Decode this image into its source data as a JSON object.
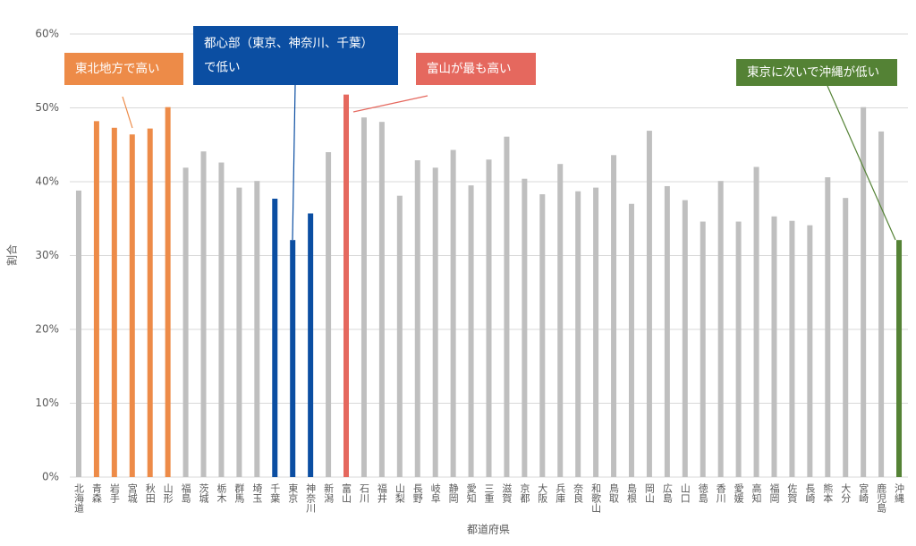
{
  "chart_data": {
    "type": "bar",
    "x_label": "都道府県",
    "y_label": "割合",
    "categories": [
      "北海道",
      "青森",
      "岩手",
      "宮城",
      "秋田",
      "山形",
      "福島",
      "茨城",
      "栃木",
      "群馬",
      "埼玉",
      "千葉",
      "東京",
      "神奈川",
      "新潟",
      "富山",
      "石川",
      "福井",
      "山梨",
      "長野",
      "岐阜",
      "静岡",
      "愛知",
      "三重",
      "滋賀",
      "京都",
      "大阪",
      "兵庫",
      "奈良",
      "和歌山",
      "鳥取",
      "島根",
      "岡山",
      "広島",
      "山口",
      "徳島",
      "香川",
      "愛媛",
      "高知",
      "福岡",
      "佐賀",
      "長崎",
      "熊本",
      "大分",
      "宮崎",
      "鹿児島",
      "沖縄"
    ],
    "values": [
      38.8,
      48.2,
      47.3,
      46.4,
      47.2,
      50.1,
      41.9,
      44.1,
      42.6,
      39.2,
      40.1,
      37.7,
      32.1,
      35.7,
      44.0,
      51.8,
      48.7,
      48.1,
      38.1,
      42.9,
      41.9,
      44.3,
      39.5,
      43.0,
      46.1,
      40.4,
      38.3,
      42.4,
      38.7,
      39.2,
      43.6,
      37.0,
      46.9,
      39.4,
      37.5,
      34.6,
      40.1,
      34.6,
      42.0,
      35.3,
      34.7,
      34.1,
      40.6,
      37.8,
      50.1,
      46.8,
      32.1
    ],
    "colors": [
      "#bfbfbf",
      "#ed8b48",
      "#ed8b48",
      "#ed8b48",
      "#ed8b48",
      "#ed8b48",
      "#bfbfbf",
      "#bfbfbf",
      "#bfbfbf",
      "#bfbfbf",
      "#bfbfbf",
      "#0b4ea2",
      "#0b4ea2",
      "#0b4ea2",
      "#bfbfbf",
      "#e5685e",
      "#bfbfbf",
      "#bfbfbf",
      "#bfbfbf",
      "#bfbfbf",
      "#bfbfbf",
      "#bfbfbf",
      "#bfbfbf",
      "#bfbfbf",
      "#bfbfbf",
      "#bfbfbf",
      "#bfbfbf",
      "#bfbfbf",
      "#bfbfbf",
      "#bfbfbf",
      "#bfbfbf",
      "#bfbfbf",
      "#bfbfbf",
      "#bfbfbf",
      "#bfbfbf",
      "#bfbfbf",
      "#bfbfbf",
      "#bfbfbf",
      "#bfbfbf",
      "#bfbfbf",
      "#bfbfbf",
      "#bfbfbf",
      "#bfbfbf",
      "#bfbfbf",
      "#bfbfbf",
      "#bfbfbf",
      "#548235"
    ],
    "ylim": [
      0,
      60
    ],
    "yticks": [
      {
        "value": 0,
        "label": "0%"
      },
      {
        "value": 10,
        "label": "10%"
      },
      {
        "value": 20,
        "label": "20%"
      },
      {
        "value": 30,
        "label": "30%"
      },
      {
        "value": 40,
        "label": "40%"
      },
      {
        "value": 50,
        "label": "50%"
      },
      {
        "value": 60,
        "label": "60%"
      }
    ],
    "grid": true,
    "annotations": [
      {
        "lines": [
          "東北地方で高い"
        ],
        "color": "#ed8b48"
      },
      {
        "lines": [
          "都心部（東京、神奈川、千葉）",
          "で低い"
        ],
        "color": "#0b4ea2"
      },
      {
        "lines": [
          "富山が最も高い"
        ],
        "color": "#e5685e"
      },
      {
        "lines": [
          "東京に次いで沖縄が低い"
        ],
        "color": "#548235"
      }
    ]
  }
}
